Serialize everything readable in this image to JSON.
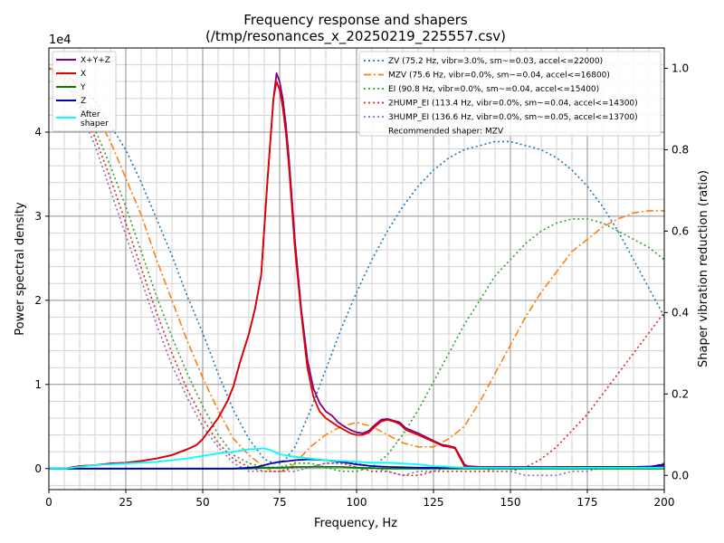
{
  "chart_data": {
    "type": "line",
    "title": "Frequency response and shapers",
    "subtitle": "(/tmp/resonances_x_20250219_225557.csv)",
    "xlabel": "Frequency, Hz",
    "ylabel": "Power spectral density",
    "y2label": "Shaper vibration reduction (ratio)",
    "y_multiplier": "1e4",
    "xlim": [
      0,
      200
    ],
    "ylim": [
      -0.25,
      5.0
    ],
    "y2lim": [
      -0.035,
      1.05
    ],
    "x_ticks": [
      "0",
      "25",
      "50",
      "75",
      "100",
      "125",
      "150",
      "175",
      "200"
    ],
    "y_ticks": [
      "0",
      "1",
      "2",
      "3",
      "4"
    ],
    "y2_ticks": [
      "0.0",
      "0.2",
      "0.4",
      "0.6",
      "0.8",
      "1.0"
    ],
    "grid": true,
    "legend_left": {
      "placement": "top-left",
      "entries": [
        {
          "name": "X+Y+Z",
          "color": "#800080"
        },
        {
          "name": "X",
          "color": "#e00000"
        },
        {
          "name": "Y",
          "color": "#008000"
        },
        {
          "name": "Z",
          "color": "#0000b0"
        },
        {
          "name": "After\nshaper",
          "color": "#00ffff"
        }
      ]
    },
    "legend_right": {
      "placement": "top-right",
      "entries": [
        {
          "name": "ZV (75.2 Hz, vibr=3.0%, sm~=0.03, accel<=22000)",
          "color": "#1f77b4",
          "dash": "dotted"
        },
        {
          "name": "MZV (75.6 Hz, vibr=0.0%, sm~=0.04, accel<=16800)",
          "color": "#ff7f0e",
          "dash": "dashdot"
        },
        {
          "name": "EI (90.8 Hz, vibr=0.0%, sm~=0.04, accel<=15400)",
          "color": "#2ca02c",
          "dash": "dotted"
        },
        {
          "name": "2HUMP_EI (113.4 Hz, vibr=0.0%, sm~=0.04, accel<=14300)",
          "color": "#d62728",
          "dash": "dotted"
        },
        {
          "name": "3HUMP_EI (136.6 Hz, vibr=0.0%, sm~=0.05, accel<=13700)",
          "color": "#9467bd",
          "dash": "dotted"
        }
      ],
      "note": "Recommended shaper: MZV"
    },
    "psd_series": [
      {
        "name": "X+Y+Z",
        "color": "#800080",
        "width": 1.8,
        "x": [
          0,
          5,
          10,
          15,
          20,
          25,
          30,
          35,
          40,
          45,
          48,
          50,
          52,
          55,
          58,
          60,
          62,
          65,
          67,
          69,
          71,
          73,
          74,
          75,
          76,
          77,
          78,
          79,
          80,
          82,
          84,
          86,
          88,
          90,
          92,
          94,
          96,
          98,
          100,
          102,
          104,
          106,
          108,
          110,
          112,
          114,
          116,
          120,
          125,
          128,
          130,
          132,
          134,
          135,
          136,
          140,
          150,
          160,
          170,
          180,
          190,
          200
        ],
        "y": [
          0,
          0,
          0.03,
          0.04,
          0.06,
          0.07,
          0.09,
          0.12,
          0.16,
          0.23,
          0.28,
          0.35,
          0.45,
          0.6,
          0.8,
          0.98,
          1.25,
          1.6,
          1.9,
          2.3,
          3.4,
          4.4,
          4.7,
          4.6,
          4.4,
          4.1,
          3.7,
          3.2,
          2.7,
          1.9,
          1.3,
          0.95,
          0.78,
          0.68,
          0.63,
          0.55,
          0.5,
          0.46,
          0.43,
          0.42,
          0.45,
          0.52,
          0.58,
          0.59,
          0.57,
          0.55,
          0.48,
          0.42,
          0.33,
          0.28,
          0.27,
          0.25,
          0.12,
          0.05,
          0.03,
          0.02,
          0.02,
          0.02,
          0.02,
          0.02,
          0.02,
          0.03
        ]
      },
      {
        "name": "X",
        "color": "#e00000",
        "width": 1.8,
        "x": [
          0,
          5,
          10,
          15,
          20,
          25,
          30,
          35,
          40,
          45,
          48,
          50,
          52,
          55,
          58,
          60,
          62,
          65,
          67,
          69,
          71,
          73,
          74,
          75,
          76,
          77,
          78,
          79,
          80,
          82,
          84,
          86,
          88,
          90,
          92,
          94,
          96,
          98,
          100,
          102,
          104,
          106,
          108,
          110,
          112,
          114,
          116,
          120,
          125,
          128,
          130,
          132,
          134,
          135,
          136,
          140,
          150,
          160,
          170,
          180,
          190,
          200
        ],
        "y": [
          0,
          0,
          0.03,
          0.04,
          0.06,
          0.07,
          0.09,
          0.12,
          0.16,
          0.23,
          0.28,
          0.35,
          0.45,
          0.6,
          0.8,
          0.98,
          1.25,
          1.6,
          1.9,
          2.3,
          3.4,
          4.4,
          4.6,
          4.5,
          4.3,
          4.0,
          3.6,
          3.1,
          2.6,
          1.85,
          1.2,
          0.85,
          0.68,
          0.6,
          0.55,
          0.5,
          0.46,
          0.42,
          0.4,
          0.4,
          0.43,
          0.5,
          0.56,
          0.58,
          0.56,
          0.53,
          0.46,
          0.4,
          0.32,
          0.27,
          0.26,
          0.24,
          0.1,
          0.03,
          0.02,
          0.01,
          0.01,
          0.01,
          0.01,
          0.01,
          0.01,
          0.01
        ]
      },
      {
        "name": "Y",
        "color": "#008000",
        "width": 1.8,
        "x": [
          0,
          50,
          60,
          65,
          70,
          75,
          80,
          85,
          90,
          95,
          100,
          110,
          120,
          200
        ],
        "y": [
          0,
          0,
          0,
          0,
          0.01,
          0.01,
          0.02,
          0.02,
          0.02,
          0.02,
          0.01,
          0,
          0,
          0
        ]
      },
      {
        "name": "Z",
        "color": "#0000b0",
        "width": 1.8,
        "x": [
          0,
          50,
          60,
          65,
          68,
          70,
          72,
          75,
          78,
          80,
          85,
          90,
          95,
          100,
          105,
          110,
          120,
          130,
          140,
          160,
          180,
          195,
          200
        ],
        "y": [
          0,
          0,
          0,
          0.01,
          0.02,
          0.04,
          0.06,
          0.08,
          0.09,
          0.1,
          0.11,
          0.1,
          0.08,
          0.05,
          0.03,
          0.02,
          0.01,
          0.01,
          0.01,
          0.01,
          0.02,
          0.02,
          0.05
        ]
      },
      {
        "name": "After\nshaper",
        "color": "#00ffff",
        "width": 1.8,
        "x": [
          0,
          5,
          10,
          15,
          20,
          25,
          30,
          35,
          40,
          45,
          50,
          55,
          60,
          65,
          70,
          72,
          75,
          78,
          80,
          85,
          90,
          95,
          100,
          105,
          110,
          115,
          120,
          125,
          130,
          135,
          140,
          150,
          160,
          170,
          180,
          190,
          200
        ],
        "y": [
          0,
          0,
          0.02,
          0.04,
          0.05,
          0.06,
          0.07,
          0.08,
          0.1,
          0.12,
          0.15,
          0.18,
          0.2,
          0.23,
          0.24,
          0.22,
          0.17,
          0.15,
          0.14,
          0.12,
          0.1,
          0.09,
          0.08,
          0.07,
          0.07,
          0.06,
          0.05,
          0.03,
          0.02,
          0.01,
          0.01,
          0.01,
          0.01,
          0.01,
          0.01,
          0.01,
          0.01
        ]
      }
    ],
    "shaper_series": [
      {
        "name": "ZV",
        "color": "#1f77b4",
        "dash": "2,3",
        "width": 1.6,
        "x": [
          0,
          5,
          10,
          15,
          20,
          25,
          30,
          35,
          40,
          45,
          50,
          55,
          60,
          65,
          70,
          73,
          75,
          77,
          80,
          85,
          90,
          95,
          100,
          105,
          110,
          115,
          120,
          125,
          130,
          135,
          140,
          145,
          150,
          155,
          160,
          165,
          170,
          175,
          180,
          185,
          190,
          195,
          200
        ],
        "y": [
          1.0,
          0.99,
          0.96,
          0.92,
          0.86,
          0.8,
          0.72,
          0.63,
          0.54,
          0.44,
          0.35,
          0.25,
          0.16,
          0.09,
          0.04,
          0.03,
          0.03,
          0.04,
          0.07,
          0.16,
          0.26,
          0.36,
          0.45,
          0.53,
          0.6,
          0.66,
          0.71,
          0.75,
          0.78,
          0.8,
          0.81,
          0.82,
          0.82,
          0.81,
          0.8,
          0.78,
          0.75,
          0.71,
          0.66,
          0.6,
          0.53,
          0.46,
          0.39
        ]
      },
      {
        "name": "MZV",
        "color": "#ff7f0e",
        "dash": "8,3,2,3",
        "width": 1.6,
        "x": [
          0,
          5,
          10,
          15,
          20,
          25,
          30,
          35,
          40,
          45,
          50,
          55,
          60,
          65,
          70,
          73,
          75,
          77,
          80,
          85,
          90,
          95,
          100,
          105,
          110,
          115,
          120,
          125,
          130,
          135,
          140,
          145,
          150,
          155,
          160,
          165,
          170,
          175,
          180,
          185,
          190,
          195,
          200
        ],
        "y": [
          1.0,
          0.99,
          0.95,
          0.89,
          0.82,
          0.73,
          0.64,
          0.53,
          0.43,
          0.33,
          0.24,
          0.16,
          0.09,
          0.05,
          0.02,
          0.01,
          0.01,
          0.01,
          0.03,
          0.07,
          0.1,
          0.12,
          0.13,
          0.12,
          0.1,
          0.08,
          0.07,
          0.07,
          0.09,
          0.12,
          0.18,
          0.25,
          0.32,
          0.39,
          0.45,
          0.5,
          0.55,
          0.58,
          0.61,
          0.63,
          0.645,
          0.65,
          0.65
        ]
      },
      {
        "name": "EI",
        "color": "#2ca02c",
        "dash": "2,3",
        "width": 1.6,
        "x": [
          0,
          5,
          10,
          15,
          20,
          25,
          30,
          35,
          40,
          45,
          50,
          55,
          60,
          65,
          70,
          75,
          80,
          85,
          90,
          95,
          100,
          105,
          110,
          115,
          120,
          125,
          130,
          135,
          140,
          145,
          150,
          155,
          160,
          165,
          170,
          175,
          180,
          185,
          190,
          195,
          200
        ],
        "y": [
          1.0,
          0.98,
          0.93,
          0.85,
          0.76,
          0.66,
          0.55,
          0.44,
          0.34,
          0.25,
          0.17,
          0.1,
          0.05,
          0.03,
          0.02,
          0.02,
          0.03,
          0.03,
          0.02,
          0.01,
          0.01,
          0.02,
          0.05,
          0.1,
          0.16,
          0.23,
          0.3,
          0.37,
          0.43,
          0.49,
          0.53,
          0.57,
          0.6,
          0.62,
          0.63,
          0.63,
          0.62,
          0.6,
          0.58,
          0.56,
          0.53
        ]
      },
      {
        "name": "2HUMP_EI",
        "color": "#d62728",
        "dash": "2,3",
        "width": 1.6,
        "x": [
          0,
          5,
          10,
          15,
          20,
          25,
          30,
          35,
          40,
          45,
          50,
          55,
          60,
          65,
          70,
          75,
          80,
          85,
          90,
          95,
          100,
          105,
          110,
          115,
          120,
          125,
          130,
          135,
          140,
          145,
          150,
          155,
          160,
          165,
          170,
          175,
          180,
          185,
          190,
          195,
          200
        ],
        "y": [
          1.0,
          0.97,
          0.91,
          0.83,
          0.73,
          0.62,
          0.51,
          0.4,
          0.3,
          0.21,
          0.14,
          0.08,
          0.04,
          0.02,
          0.01,
          0.01,
          0.02,
          0.02,
          0.03,
          0.03,
          0.02,
          0.01,
          0.01,
          0.0,
          0.0,
          0.01,
          0.01,
          0.01,
          0.01,
          0.01,
          0.01,
          0.02,
          0.04,
          0.07,
          0.11,
          0.15,
          0.2,
          0.25,
          0.3,
          0.35,
          0.4
        ]
      },
      {
        "name": "3HUMP_EI",
        "color": "#9467bd",
        "dash": "2,3",
        "width": 1.6,
        "x": [
          0,
          5,
          10,
          15,
          20,
          25,
          30,
          35,
          40,
          45,
          50,
          55,
          60,
          65,
          70,
          75,
          80,
          85,
          90,
          95,
          100,
          105,
          110,
          115,
          120,
          125,
          130,
          135,
          140,
          145,
          150,
          155,
          160,
          165,
          170,
          175,
          180,
          185,
          190,
          195,
          200
        ],
        "y": [
          1.0,
          0.97,
          0.9,
          0.81,
          0.7,
          0.59,
          0.48,
          0.37,
          0.27,
          0.19,
          0.12,
          0.07,
          0.03,
          0.01,
          0.01,
          0.01,
          0.01,
          0.02,
          0.03,
          0.03,
          0.03,
          0.02,
          0.01,
          0.0,
          0.01,
          0.01,
          0.02,
          0.02,
          0.02,
          0.01,
          0.01,
          0.0,
          0.0,
          0.0,
          0.01,
          0.01,
          0.02,
          0.02,
          0.02,
          0.02,
          0.03
        ]
      }
    ]
  }
}
